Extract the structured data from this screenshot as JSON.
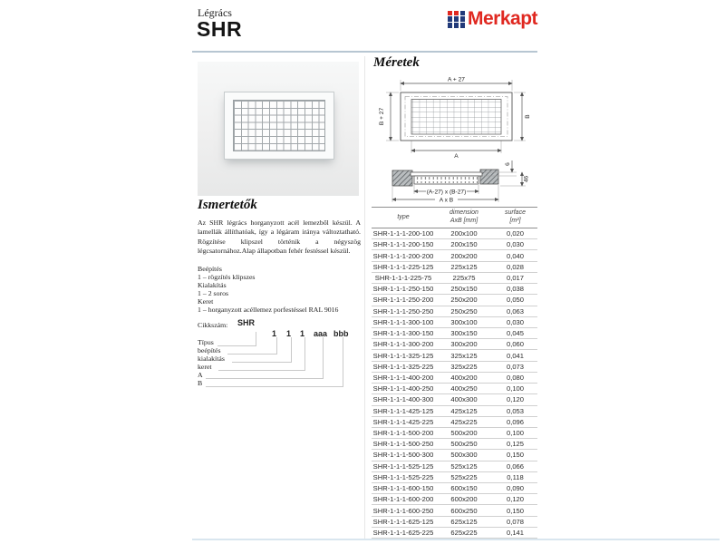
{
  "colors": {
    "brand_red": "#e02820",
    "brand_navy": "#223a7a",
    "rule_blue": "#b7c6d2",
    "table_line": "#d0d0d0"
  },
  "header": {
    "category": "Légrács",
    "product": "SHR",
    "brand": "Merkapt"
  },
  "left": {
    "about_title": "Ismertetők",
    "about_text": "Az SHR légrács horganyzott acél lemezből készül. A lamellák állíthatóak, így a légáram iránya változtatható. Rögzítése klipszel történik a négyszög légcsatornához.Alap állapotban fehér festéssel készül.",
    "spec_lines": [
      "Beépítés",
      "1 – rögzítés klipszes",
      "Kialakítás",
      "1 – 2 soros",
      "Keret",
      "1 – horganyzott acéllemez porfestéssel RAL 9016"
    ],
    "ordering": {
      "label": "Cikkszám:",
      "prefix": "SHR",
      "codes": [
        "1",
        "1",
        "1",
        "aaa",
        "bbb"
      ],
      "legend": [
        "Típus",
        "beépítés",
        "kialakítás",
        "keret",
        "A",
        "B"
      ]
    }
  },
  "right": {
    "dim_title": "Méretek",
    "front_view": {
      "top": "A + 27",
      "left": "B + 27",
      "right": "B",
      "bottom": "A"
    },
    "section_view": {
      "flange": "6",
      "depth": "46",
      "inner": "(A-27) x (B-27)",
      "outer": "A x B"
    },
    "table": {
      "header": {
        "col1": "type",
        "col2_line1": "dimension",
        "col2_line2": "AxB [mm]",
        "col3_line1": "surface",
        "col3_line2": "[m²]"
      },
      "rows": [
        [
          "SHR-1-1-1-200-100",
          "200x100",
          "0,020"
        ],
        [
          "SHR-1-1-1-200-150",
          "200x150",
          "0,030"
        ],
        [
          "SHR-1-1-1-200-200",
          "200x200",
          "0,040"
        ],
        [
          "SHR-1-1-1-225-125",
          "225x125",
          "0,028"
        ],
        [
          "SHR-1-1-1-225-75",
          "225x75",
          "0,017"
        ],
        [
          "SHR-1-1-1-250-150",
          "250x150",
          "0,038"
        ],
        [
          "SHR-1-1-1-250-200",
          "250x200",
          "0,050"
        ],
        [
          "SHR-1-1-1-250-250",
          "250x250",
          "0,063"
        ],
        [
          "SHR-1-1-1-300-100",
          "300x100",
          "0,030"
        ],
        [
          "SHR-1-1-1-300-150",
          "300x150",
          "0,045"
        ],
        [
          "SHR-1-1-1-300-200",
          "300x200",
          "0,060"
        ],
        [
          "SHR-1-1-1-325-125",
          "325x125",
          "0,041"
        ],
        [
          "SHR-1-1-1-325-225",
          "325x225",
          "0,073"
        ],
        [
          "SHR-1-1-1-400-200",
          "400x200",
          "0,080"
        ],
        [
          "SHR-1-1-1-400-250",
          "400x250",
          "0,100"
        ],
        [
          "SHR-1-1-1-400-300",
          "400x300",
          "0,120"
        ],
        [
          "SHR-1-1-1-425-125",
          "425x125",
          "0,053"
        ],
        [
          "SHR-1-1-1-425-225",
          "425x225",
          "0,096"
        ],
        [
          "SHR-1-1-1-500-200",
          "500x200",
          "0,100"
        ],
        [
          "SHR-1-1-1-500-250",
          "500x250",
          "0,125"
        ],
        [
          "SHR-1-1-1-500-300",
          "500x300",
          "0,150"
        ],
        [
          "SHR-1-1-1-525-125",
          "525x125",
          "0,066"
        ],
        [
          "SHR-1-1-1-525-225",
          "525x225",
          "0,118"
        ],
        [
          "SHR-1-1-1-600-150",
          "600x150",
          "0,090"
        ],
        [
          "SHR-1-1-1-600-200",
          "600x200",
          "0,120"
        ],
        [
          "SHR-1-1-1-600-250",
          "600x250",
          "0,150"
        ],
        [
          "SHR-1-1-1-625-125",
          "625x125",
          "0,078"
        ],
        [
          "SHR-1-1-1-625-225",
          "625x225",
          "0,141"
        ]
      ]
    }
  }
}
